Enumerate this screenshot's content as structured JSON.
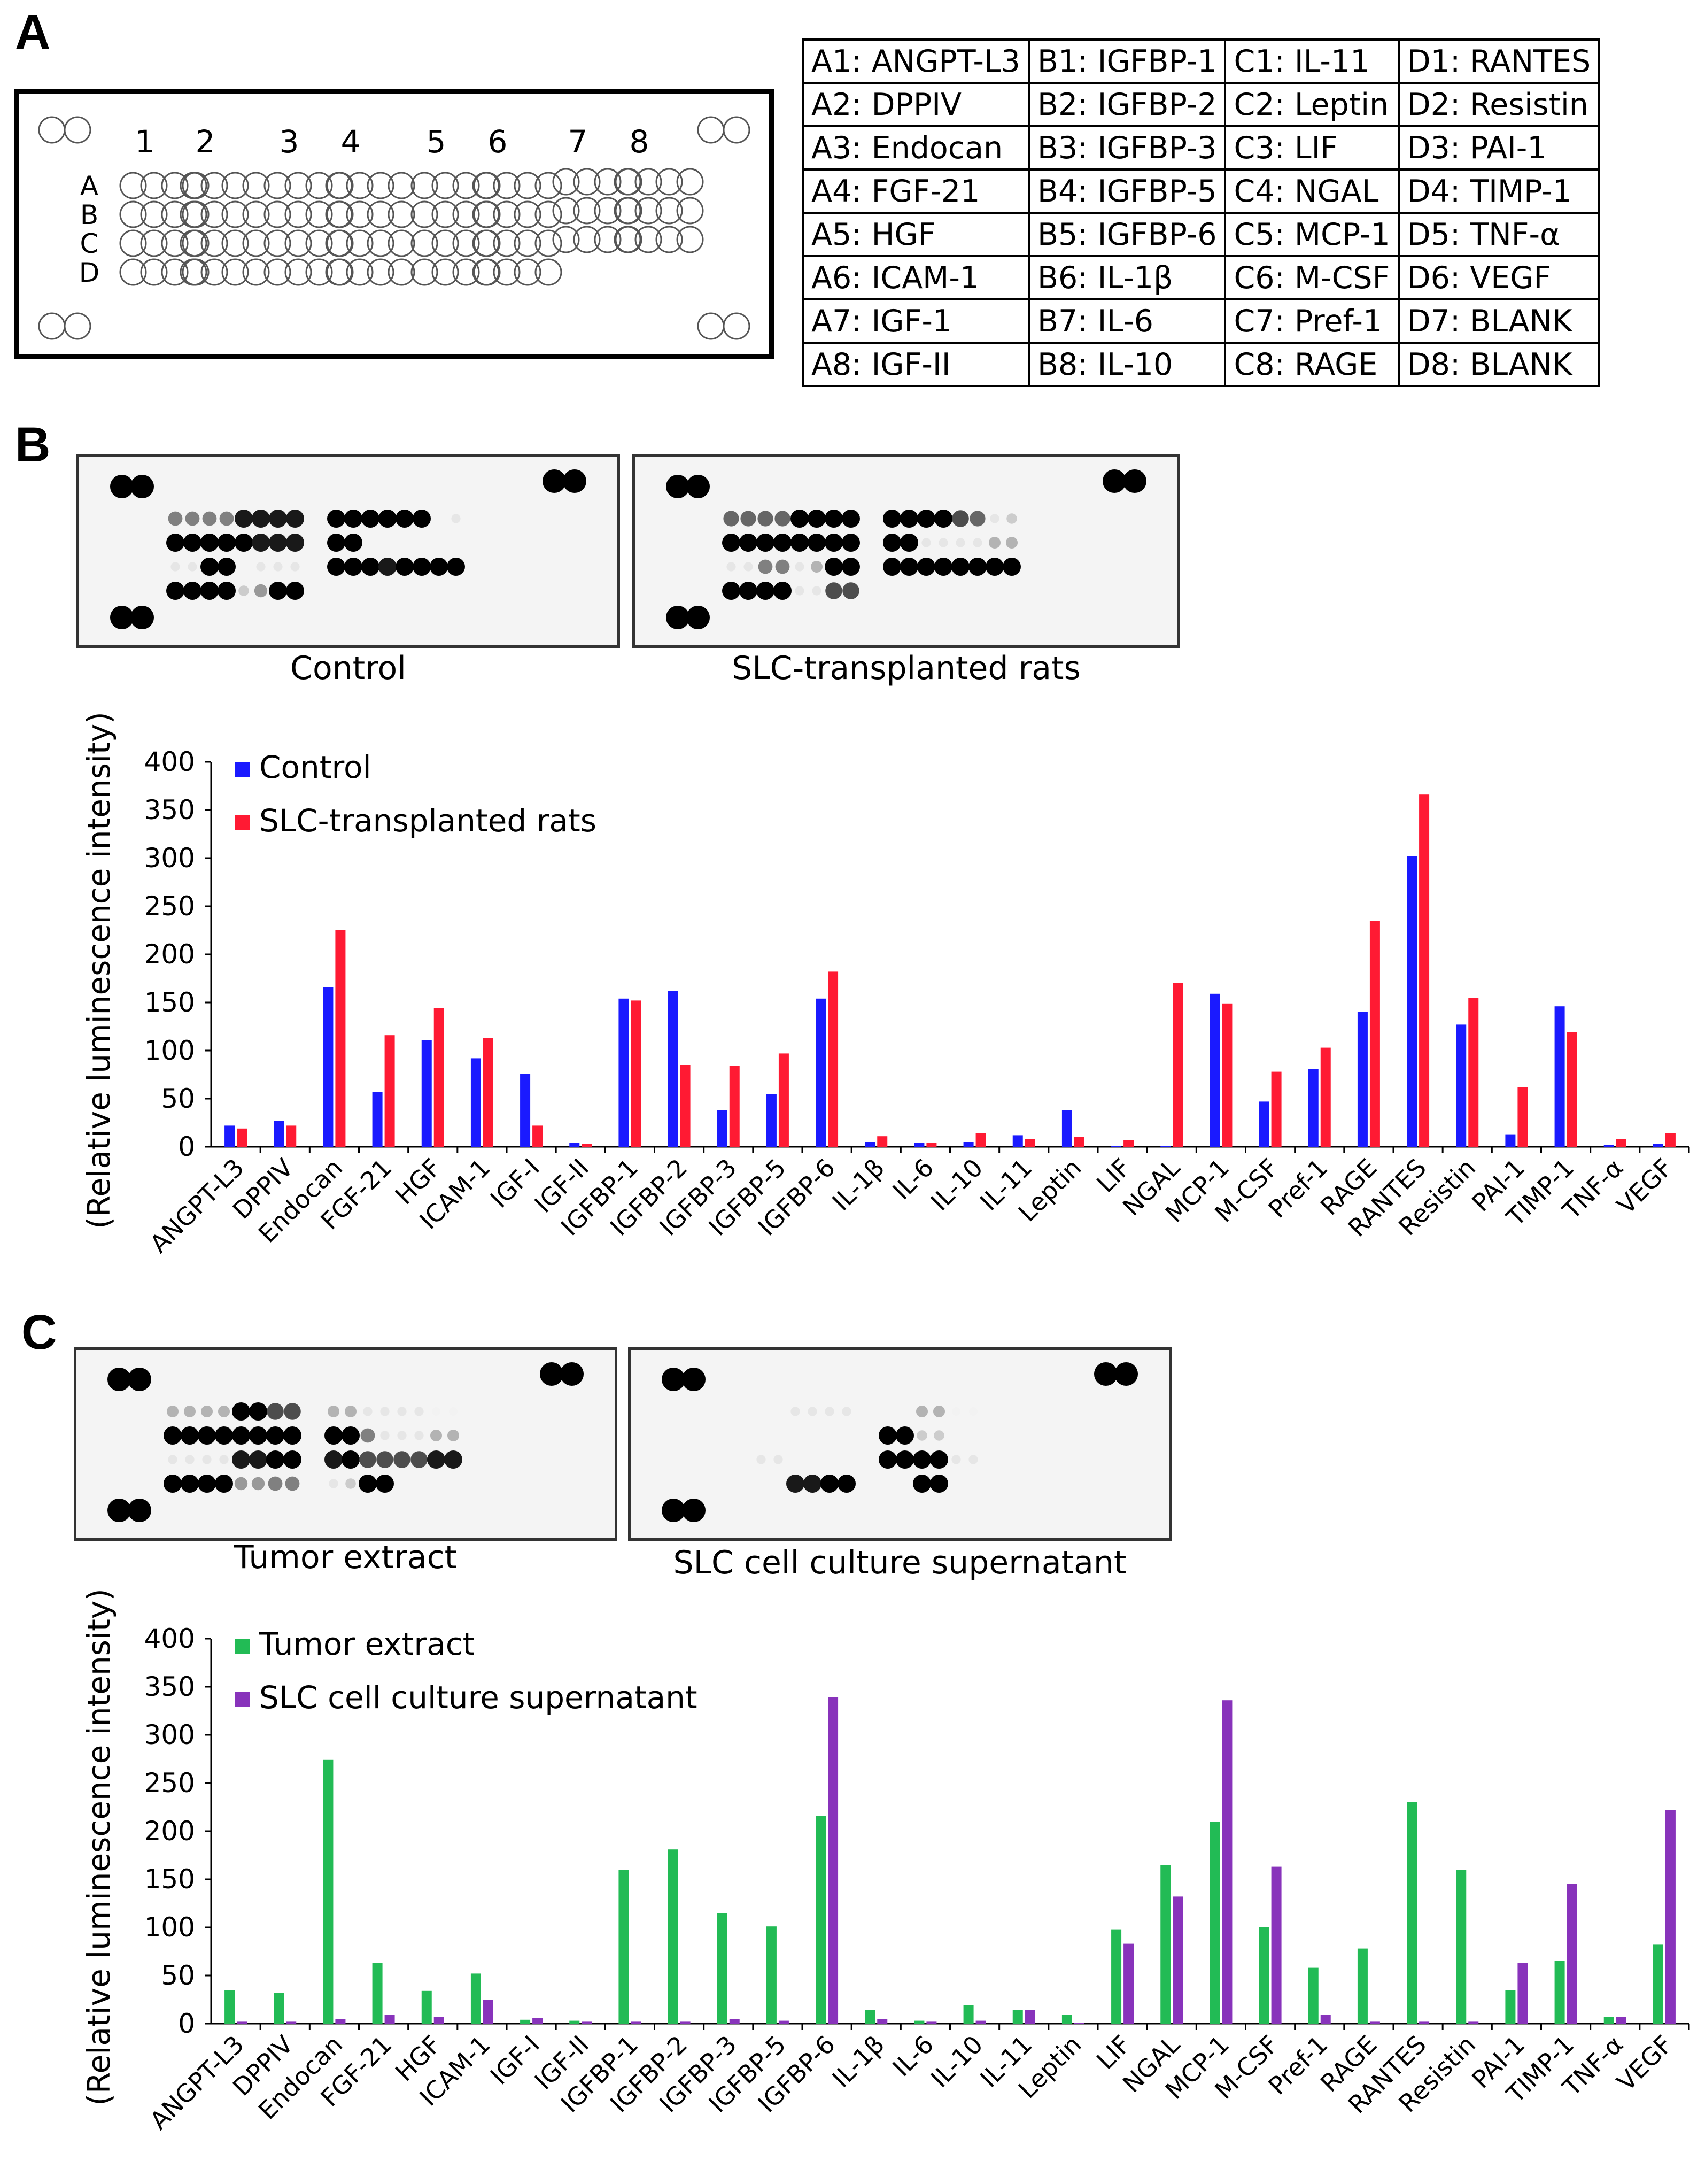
{
  "panel_labels": {
    "a": "A",
    "b": "B",
    "c": "C"
  },
  "array_layout": {
    "column_numbers": [
      "1",
      "2",
      "3",
      "4",
      "5",
      "6",
      "7",
      "8"
    ],
    "row_letters": [
      "A",
      "B",
      "C",
      "D"
    ]
  },
  "key_table": [
    [
      "A1: ANGPT-L3",
      "B1: IGFBP-1",
      "C1: IL-11",
      "D1: RANTES"
    ],
    [
      "A2: DPPIV",
      "B2: IGFBP-2",
      "C2: Leptin",
      "D2: Resistin"
    ],
    [
      "A3: Endocan",
      "B3: IGFBP-3",
      "C3: LIF",
      "D3: PAI-1"
    ],
    [
      "A4: FGF-21",
      "B4: IGFBP-5",
      "C4: NGAL",
      "D4: TIMP-1"
    ],
    [
      "A5: HGF",
      "B5: IGFBP-6",
      "C5: MCP-1",
      "D5: TNF-α"
    ],
    [
      "A6: ICAM-1",
      "B6: IL-1β",
      "C6: M-CSF",
      "D6: VEGF"
    ],
    [
      "A7: IGF-1",
      "B7: IL-6",
      "C7: Pref-1",
      "D7: BLANK"
    ],
    [
      "A8: IGF-II",
      "B8: IL-10",
      "C8: RAGE",
      "D8: BLANK"
    ]
  ],
  "blot_captions": {
    "b_left": "Control",
    "b_right": "SLC-transplanted rats",
    "c_left": "Tumor extract",
    "c_right": "SLC cell culture supernatant"
  },
  "colors": {
    "control": "#1a1aff",
    "slc_rats": "#ff1a33",
    "tumor": "#22bb55",
    "supernatant": "#8833bb"
  },
  "chart_data": [
    {
      "type": "bar",
      "panel": "B",
      "categories": [
        "ANGPT-L3",
        "DPPIV",
        "Endocan",
        "FGF-21",
        "HGF",
        "ICAM-1",
        "IGF-I",
        "IGF-II",
        "IGFBP-1",
        "IGFBP-2",
        "IGFBP-3",
        "IGFBP-5",
        "IGFBP-6",
        "IL-1β",
        "IL-6",
        "IL-10",
        "IL-11",
        "Leptin",
        "LIF",
        "NGAL",
        "MCP-1",
        "M-CSF",
        "Pref-1",
        "RAGE",
        "RANTES",
        "Resistin",
        "PAI-1",
        "TIMP-1",
        "TNF-α",
        "VEGF"
      ],
      "series": [
        {
          "name": "Control",
          "color": "#1a1aff",
          "values": [
            22,
            27,
            166,
            57,
            111,
            92,
            76,
            4,
            154,
            162,
            38,
            55,
            154,
            5,
            4,
            5,
            12,
            38,
            1,
            1,
            159,
            47,
            81,
            140,
            302,
            127,
            13,
            146,
            2,
            3
          ]
        },
        {
          "name": "SLC-transplanted rats",
          "color": "#ff1a33",
          "values": [
            19,
            22,
            225,
            116,
            144,
            113,
            22,
            3,
            152,
            85,
            84,
            97,
            182,
            11,
            4,
            14,
            8,
            10,
            7,
            170,
            149,
            78,
            103,
            235,
            366,
            155,
            62,
            119,
            8,
            14
          ]
        }
      ],
      "ylabel": "(Relative luminescence intensity)",
      "yticks": [
        0,
        50,
        100,
        150,
        200,
        250,
        300,
        350,
        400
      ],
      "ylim": [
        0,
        400
      ]
    },
    {
      "type": "bar",
      "panel": "C",
      "categories": [
        "ANGPT-L3",
        "DPPIV",
        "Endocan",
        "FGF-21",
        "HGF",
        "ICAM-1",
        "IGF-I",
        "IGF-II",
        "IGFBP-1",
        "IGFBP-2",
        "IGFBP-3",
        "IGFBP-5",
        "IGFBP-6",
        "IL-1β",
        "IL-6",
        "IL-10",
        "IL-11",
        "Leptin",
        "LIF",
        "NGAL",
        "MCP-1",
        "M-CSF",
        "Pref-1",
        "RAGE",
        "RANTES",
        "Resistin",
        "PAI-1",
        "TIMP-1",
        "TNF-α",
        "VEGF"
      ],
      "series": [
        {
          "name": "Tumor extract",
          "color": "#22bb55",
          "values": [
            35,
            32,
            274,
            63,
            34,
            52,
            4,
            3,
            160,
            181,
            115,
            101,
            216,
            14,
            3,
            19,
            14,
            9,
            98,
            165,
            210,
            100,
            58,
            78,
            230,
            160,
            35,
            65,
            7,
            82
          ]
        },
        {
          "name": "SLC cell culture supernatant",
          "color": "#8833bb",
          "values": [
            2,
            2,
            5,
            9,
            7,
            25,
            6,
            2,
            2,
            2,
            5,
            3,
            339,
            5,
            2,
            3,
            14,
            1,
            83,
            132,
            336,
            163,
            9,
            2,
            2,
            2,
            63,
            145,
            7,
            222
          ]
        }
      ],
      "ylabel": "(Relative luminescence intensity)",
      "yticks": [
        0,
        50,
        100,
        150,
        200,
        250,
        300,
        350,
        400
      ],
      "ylim": [
        0,
        400
      ]
    }
  ]
}
